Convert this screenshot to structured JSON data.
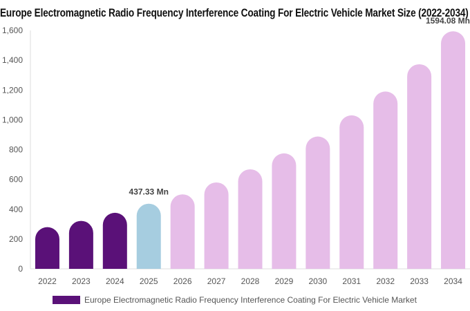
{
  "colors": {
    "historical": "#5a1178",
    "current": "#a6cde0",
    "forecast": "#e6bde8",
    "axis_text": "#555555",
    "grid": "#eeeeee",
    "label_text": "#444444"
  },
  "chart_data": {
    "type": "bar",
    "title": "Europe Electromagnetic Radio Frequency Interference Coating For Electric Vehicle Market Size (2022-2034)",
    "xlabel": "",
    "ylabel": "",
    "categories": [
      "2022",
      "2023",
      "2024",
      "2025",
      "2026",
      "2027",
      "2028",
      "2029",
      "2030",
      "2031",
      "2032",
      "2033",
      "2034"
    ],
    "series": [
      {
        "name": "Europe Electromagnetic Radio Frequency Interference Coating For Electric Vehicle Market",
        "values": [
          280,
          322,
          376,
          437.33,
          500,
          580,
          668,
          775,
          888,
          1030,
          1190,
          1373,
          1594.08
        ]
      }
    ],
    "bar_color_groups": [
      "historical",
      "historical",
      "historical",
      "current",
      "forecast",
      "forecast",
      "forecast",
      "forecast",
      "forecast",
      "forecast",
      "forecast",
      "forecast",
      "forecast"
    ],
    "data_labels": [
      {
        "index": 3,
        "text": "437.33 Mn"
      },
      {
        "index": 12,
        "text": "1594.08 Mn"
      }
    ],
    "yticks": [
      0,
      200,
      400,
      600,
      800,
      1000,
      1200,
      1400,
      1600
    ],
    "ytick_labels": [
      "0",
      "200",
      "400",
      "600",
      "800",
      "1,000",
      "1,200",
      "1,400",
      "1,600"
    ],
    "ylim": [
      0,
      1600
    ],
    "grid": false,
    "legend_position": "bottom"
  }
}
